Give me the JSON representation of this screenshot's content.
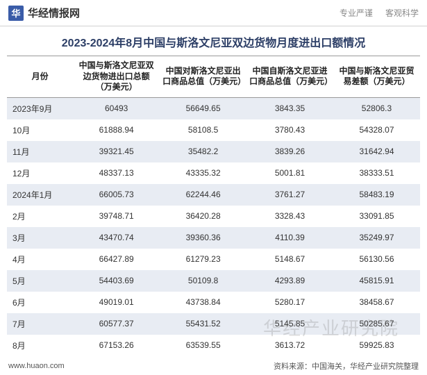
{
  "brand": {
    "logo_text": "华",
    "name": "华经情报网",
    "slogan1": "专业严谨",
    "slogan2": "客观科学"
  },
  "title": "2023-2024年8月中国与斯洛文尼亚双边货物月度进出口额情况",
  "table": {
    "columns": [
      "月份",
      "中国与斯洛文尼亚双边货物进出口总额（万美元）",
      "中国对斯洛文尼亚出口商品总值（万美元）",
      "中国自斯洛文尼亚进口商品总值（万美元）",
      "中国与斯洛文尼亚贸易差额（万美元）"
    ],
    "rows": [
      [
        "2023年9月",
        "60493",
        "56649.65",
        "3843.35",
        "52806.3"
      ],
      [
        "10月",
        "61888.94",
        "58108.5",
        "3780.43",
        "54328.07"
      ],
      [
        "11月",
        "39321.45",
        "35482.2",
        "3839.26",
        "31642.94"
      ],
      [
        "12月",
        "48337.13",
        "43335.32",
        "5001.81",
        "38333.51"
      ],
      [
        "2024年1月",
        "66005.73",
        "62244.46",
        "3761.27",
        "58483.19"
      ],
      [
        "2月",
        "39748.71",
        "36420.28",
        "3328.43",
        "33091.85"
      ],
      [
        "3月",
        "43470.74",
        "39360.36",
        "4110.39",
        "35249.97"
      ],
      [
        "4月",
        "66427.89",
        "61279.23",
        "5148.67",
        "56130.56"
      ],
      [
        "5月",
        "54403.69",
        "50109.8",
        "4293.89",
        "45815.91"
      ],
      [
        "6月",
        "49019.01",
        "43738.84",
        "5280.17",
        "38458.67"
      ],
      [
        "7月",
        "60577.37",
        "55431.52",
        "5145.85",
        "50285.67"
      ],
      [
        "8月",
        "67153.26",
        "63539.55",
        "3613.72",
        "59925.83"
      ]
    ],
    "stripe_odd_bg": "#e8ecf3",
    "stripe_even_bg": "#ffffff",
    "border_color": "#999999"
  },
  "footer": {
    "url": "www.huaon.com",
    "source": "资料来源：中国海关，华经产业研究院整理"
  },
  "watermark": "华经产业研究院"
}
